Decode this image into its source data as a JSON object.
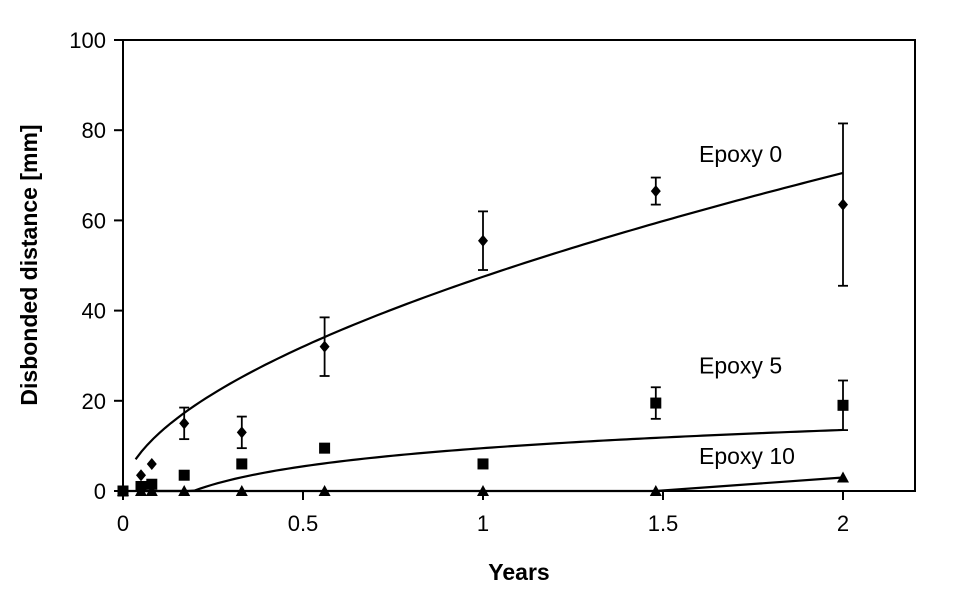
{
  "chart_data": {
    "type": "scatter",
    "title": "",
    "xlabel": "Years",
    "ylabel": "Disbonded distance [mm]",
    "xlim": [
      0,
      2.2
    ],
    "ylim": [
      0,
      100
    ],
    "x_ticks": [
      0,
      0.5,
      1,
      1.5,
      2
    ],
    "x_tick_labels": [
      "0",
      "0.5",
      "1",
      "1.5",
      "2"
    ],
    "y_ticks": [
      0,
      20,
      40,
      60,
      80,
      100
    ],
    "y_tick_labels": [
      "0",
      "20",
      "40",
      "60",
      "80",
      "100"
    ],
    "grid": false,
    "legend": "none",
    "series": [
      {
        "name": "Epoxy 0",
        "marker": "diamond",
        "color": "#000000",
        "points": [
          {
            "x": 0,
            "y": 0
          },
          {
            "x": 0.05,
            "y": 3.5
          },
          {
            "x": 0.08,
            "y": 6
          },
          {
            "x": 0.17,
            "y": 15,
            "err": 3.5
          },
          {
            "x": 0.33,
            "y": 13,
            "err": 3.5
          },
          {
            "x": 0.56,
            "y": 32,
            "err": 6.5
          },
          {
            "x": 1.0,
            "y": 55.5,
            "err": 6.5
          },
          {
            "x": 1.48,
            "y": 66.5,
            "err": 3
          },
          {
            "x": 2.0,
            "y": 63.5,
            "err": 18
          }
        ],
        "fit": {
          "type": "power",
          "a": 47.5,
          "b": 0.57,
          "x_start": 0.035,
          "x_end": 2.0
        }
      },
      {
        "name": "Epoxy 5",
        "marker": "square",
        "color": "#000000",
        "points": [
          {
            "x": 0,
            "y": 0
          },
          {
            "x": 0.05,
            "y": 1
          },
          {
            "x": 0.08,
            "y": 1.5
          },
          {
            "x": 0.17,
            "y": 3.5
          },
          {
            "x": 0.33,
            "y": 6
          },
          {
            "x": 0.56,
            "y": 9.5
          },
          {
            "x": 1.0,
            "y": 6
          },
          {
            "x": 1.48,
            "y": 19.5,
            "err": 3.5
          },
          {
            "x": 2.0,
            "y": 19,
            "err": 5.5
          }
        ],
        "fit": {
          "type": "log",
          "a": 9.5,
          "b": 13.4,
          "x_start": 0.052,
          "x_end": 2.0
        }
      },
      {
        "name": "Epoxy 10",
        "marker": "triangle",
        "color": "#000000",
        "points": [
          {
            "x": 0,
            "y": 0
          },
          {
            "x": 0.05,
            "y": 0
          },
          {
            "x": 0.08,
            "y": 0
          },
          {
            "x": 0.17,
            "y": 0
          },
          {
            "x": 0.33,
            "y": 0
          },
          {
            "x": 0.56,
            "y": 0
          },
          {
            "x": 1.0,
            "y": 0
          },
          {
            "x": 1.48,
            "y": 0
          },
          {
            "x": 2.0,
            "y": 3
          }
        ],
        "fit": {
          "type": "segments",
          "points": [
            [
              0,
              0
            ],
            [
              1.48,
              0
            ],
            [
              2.0,
              3
            ]
          ]
        }
      }
    ],
    "annotations": [
      {
        "text": "Epoxy 0",
        "x": 1.6,
        "y": 73
      },
      {
        "text": "Epoxy 5",
        "x": 1.6,
        "y": 26
      },
      {
        "text": "Epoxy 10",
        "x": 1.6,
        "y": 6
      }
    ]
  }
}
